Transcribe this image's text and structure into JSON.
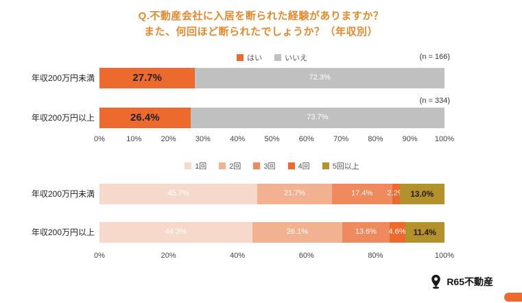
{
  "title": {
    "line1": "Q.不動産会社に入居を断られた経験がありますか？",
    "line2": "また、何回ほど断られたでしょうか？（年収別）"
  },
  "colors": {
    "title": "#e6892e",
    "accent_orange": "#ed6a2f",
    "gray": "#c1c0c0",
    "gold": "#b3922e"
  },
  "chart_data": [
    {
      "type": "bar",
      "orientation": "horizontal",
      "stacked": true,
      "legend_position": "top-center",
      "categories": [
        "年収200万円未満",
        "年収200万円以上"
      ],
      "series": [
        {
          "name": "はい",
          "color": "#ed6a2f",
          "values": [
            27.7,
            26.4
          ],
          "label_color": "#1f1f1f",
          "label_bold": true,
          "label_size": 15
        },
        {
          "name": "いいえ",
          "color": "#c1c0c0",
          "values": [
            72.3,
            73.7
          ],
          "label_color": "#ffffff",
          "label_bold": false,
          "label_size": 11
        }
      ],
      "annotations": [
        "(n = 166)",
        "(n = 334)"
      ],
      "x_ticks": [
        "0%",
        "10%",
        "20%",
        "30%",
        "40%",
        "50%",
        "60%",
        "70%",
        "80%",
        "90%",
        "100%"
      ],
      "xlim": [
        0,
        100
      ],
      "grid": false
    },
    {
      "type": "bar",
      "orientation": "horizontal",
      "stacked": true,
      "legend_position": "top-center",
      "categories": [
        "年収200万円未満",
        "年収200万円以上"
      ],
      "series": [
        {
          "name": "1回",
          "color": "#f6d9cb",
          "values": [
            45.7,
            44.3
          ],
          "label_color": "#ffffff",
          "label_bold": false,
          "label_size": 11
        },
        {
          "name": "2回",
          "color": "#f2b292",
          "values": [
            21.7,
            26.1
          ],
          "label_color": "#ffffff",
          "label_bold": false,
          "label_size": 11
        },
        {
          "name": "3回",
          "color": "#ee8a5e",
          "values": [
            17.4,
            13.6
          ],
          "label_color": "#ffffff",
          "label_bold": false,
          "label_size": 11
        },
        {
          "name": "4回",
          "color": "#ed6a2f",
          "values": [
            2.2,
            4.6
          ],
          "label_color": "#ffffff",
          "label_bold": false,
          "label_size": 11
        },
        {
          "name": "5回以上",
          "color": "#b3922e",
          "values": [
            13.0,
            11.4
          ],
          "label_color": "#241c07",
          "label_bold": true,
          "label_size": 12
        }
      ],
      "x_ticks": [
        "0%",
        "20%",
        "40%",
        "60%",
        "80%",
        "100%"
      ],
      "xlim": [
        0,
        100
      ],
      "grid": false
    }
  ],
  "footer": {
    "brand": "R65不動産"
  }
}
